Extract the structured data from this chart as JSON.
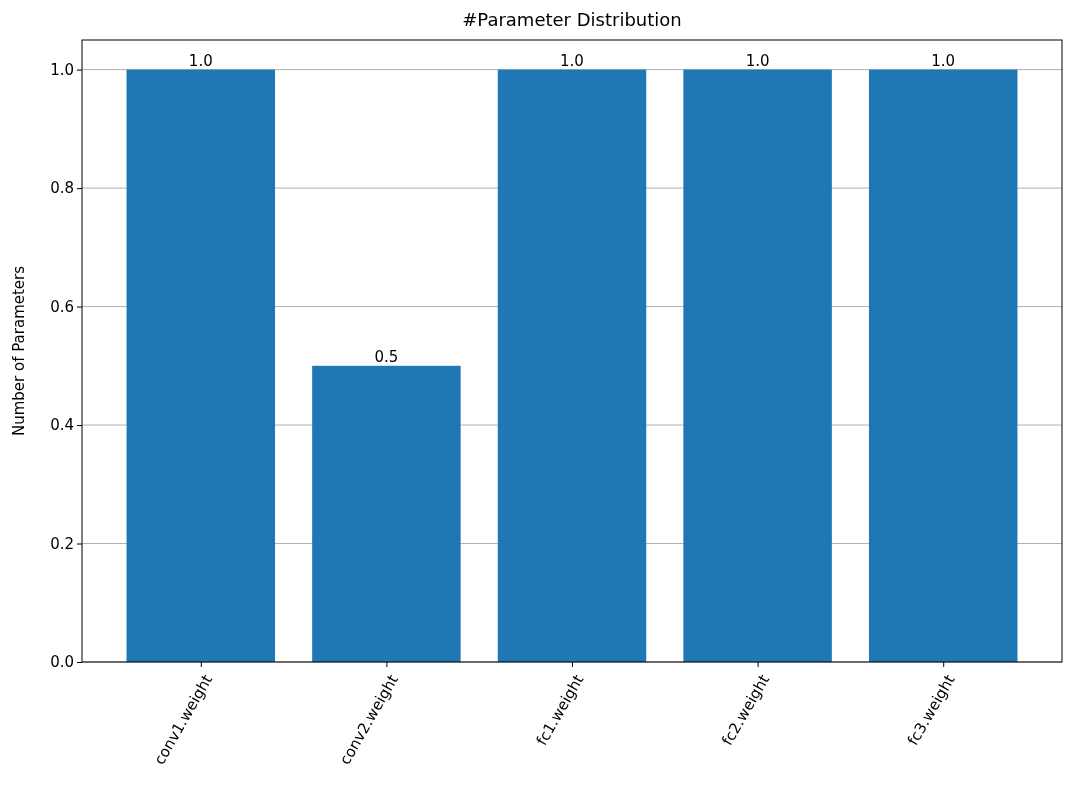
{
  "chart_data": {
    "type": "bar",
    "title": "#Parameter Distribution",
    "ylabel": "Number of Parameters",
    "categories": [
      "conv1.weight",
      "conv2.weight",
      "fc1.weight",
      "fc2.weight",
      "fc3.weight"
    ],
    "values": [
      1.0,
      0.5,
      1.0,
      1.0,
      1.0
    ],
    "value_labels": [
      "1.0",
      "0.5",
      "1.0",
      "1.0",
      "1.0"
    ],
    "color": "#1f77b4",
    "ylim": [
      0,
      1.05
    ],
    "yticks": [
      {
        "value": 0,
        "label": "0.0"
      },
      {
        "value": 0.2,
        "label": "0.2"
      },
      {
        "value": 0.4,
        "label": "0.4"
      },
      {
        "value": 0.6,
        "label": "0.6"
      },
      {
        "value": 0.8,
        "label": "0.8"
      },
      {
        "value": 1.0,
        "label": "1.0"
      }
    ],
    "grid": "y"
  }
}
